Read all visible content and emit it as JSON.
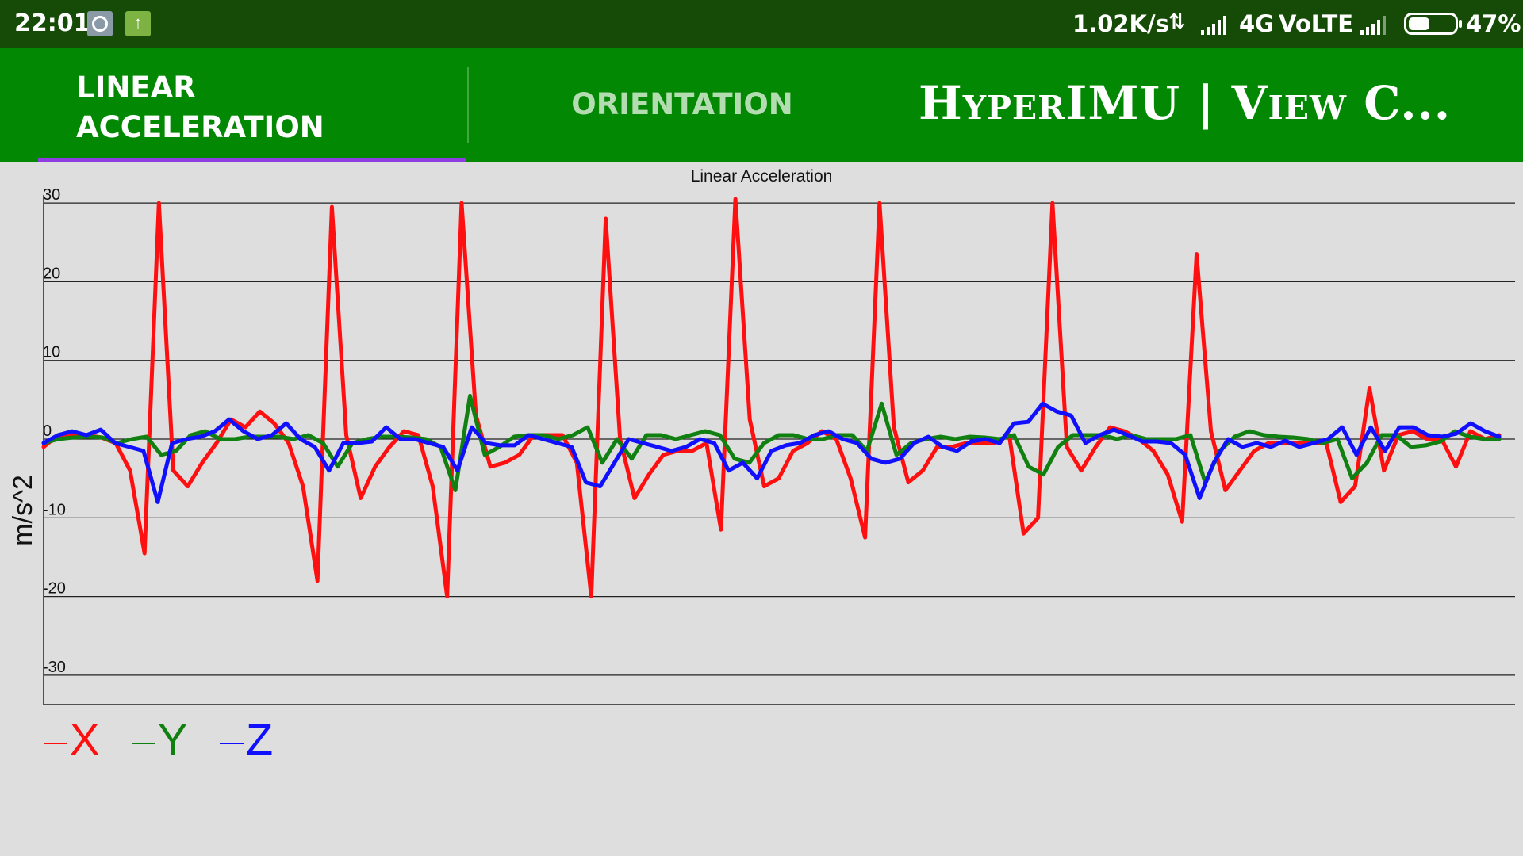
{
  "status_bar": {
    "time": "22:01",
    "icons": [
      "settings-wheel-icon",
      "upload-arrow-icon"
    ],
    "net_speed": "1.02K/s",
    "data_activity_icon": "data-up-down-icon",
    "signal_icon": "cell-signal-icon",
    "network_type": "4G",
    "volte": "VoLTE",
    "battery_percent": "47%",
    "battery_level": 0.47
  },
  "app_bar": {
    "tabs": [
      {
        "label": "LINEAR\nACCELERATION",
        "selected": true
      },
      {
        "label": "ORIENTATION",
        "selected": false
      }
    ],
    "title": "HyperIMU | View C...",
    "colors": {
      "bar": "#038803",
      "indicator": "#8e3de0",
      "status": "#164b07"
    }
  },
  "chart_data": {
    "type": "line",
    "title": "Linear Acceleration",
    "xlabel": "",
    "ylabel": "m/s^2",
    "ylim": [
      -34,
      31
    ],
    "yticks": [
      30,
      20,
      10,
      0,
      -10,
      -20,
      -30
    ],
    "ytick_labels": [
      "30",
      "20",
      "10",
      "0",
      "-10",
      "-20",
      "-30"
    ],
    "grid": true,
    "legend": "bottom-left",
    "series": [
      {
        "name": "X",
        "color": "#ff1010",
        "values": [
          -1,
          0.5,
          0.5,
          0.5,
          0.2,
          -0.5,
          -4,
          -14.5,
          30,
          -4,
          -6,
          -3,
          -0.5,
          2.5,
          1.5,
          3.5,
          2,
          -0.5,
          -6,
          -18,
          29.5,
          0.5,
          -7.5,
          -3.5,
          -1,
          1,
          0.5,
          -6,
          -20,
          30,
          3,
          -3.5,
          -3,
          -2,
          0.5,
          0.5,
          0.5,
          -3,
          -20,
          28,
          0,
          -7.5,
          -4.5,
          -2,
          -1.5,
          -1.5,
          -0.5,
          -11.5,
          30.5,
          2.5,
          -6,
          -5,
          -1.5,
          -0.5,
          1,
          0,
          -5,
          -12.5,
          30,
          1.5,
          -5.5,
          -4,
          -1,
          -1,
          -0.5,
          -0.5,
          -0.5,
          0.5,
          -12,
          -10,
          30,
          -1,
          -4,
          -1,
          1.5,
          1,
          0,
          -1.5,
          -4.5,
          -10.5,
          23.5,
          1,
          -6.5,
          -4,
          -1.5,
          -0.5,
          -0.5,
          -0.5,
          -0.5,
          -0.5,
          -8,
          -6,
          6.5,
          -4,
          0.5,
          1,
          0,
          0,
          -3.5,
          1,
          0,
          0.5
        ]
      },
      {
        "name": "Y",
        "color": "#108010",
        "values": [
          -0.5,
          0,
          0.2,
          0.3,
          0.2,
          -0.5,
          0,
          0.3,
          -2,
          -1.5,
          0.5,
          1,
          0,
          0,
          0.3,
          0.3,
          0.3,
          0,
          0.5,
          -0.5,
          -3.5,
          -0.5,
          0,
          0.3,
          0.3,
          0.2,
          0,
          -1,
          -6.5,
          5.5,
          -2,
          -1,
          0.3,
          0.5,
          0.5,
          0,
          0.5,
          1.5,
          -3,
          0,
          -2.5,
          0.5,
          0.5,
          0,
          0.5,
          1,
          0.5,
          -2.5,
          -3,
          -0.5,
          0.5,
          0.5,
          0,
          0,
          0.5,
          0.5,
          -1.5,
          4.5,
          -2,
          -0.5,
          0,
          0.3,
          0,
          0.3,
          0.2,
          0,
          0.5,
          -3.5,
          -4.5,
          -1,
          0.5,
          0.5,
          0.5,
          0,
          0.5,
          0,
          0,
          0,
          0.5,
          -5.5,
          -1.5,
          0.3,
          1,
          0.5,
          0.3,
          0.2,
          0,
          -0.5,
          0,
          -5,
          -3,
          0.5,
          0.5,
          -1,
          -0.8,
          -0.3,
          1,
          0.3,
          0,
          0
        ]
      },
      {
        "name": "Z",
        "color": "#1010ff",
        "values": [
          -0.5,
          0.5,
          1,
          0.5,
          1.2,
          -0.5,
          -1,
          -1.5,
          -8,
          -0.5,
          0,
          0.3,
          1,
          2.5,
          1,
          0,
          0.5,
          2,
          0,
          -1,
          -4,
          -0.5,
          -0.5,
          -0.3,
          1.5,
          0,
          0,
          -0.5,
          -1,
          -4,
          1.5,
          -0.5,
          -0.8,
          -0.8,
          0.5,
          0,
          -0.5,
          -1,
          -5.5,
          -6,
          -3,
          0,
          -0.5,
          -1,
          -1.5,
          -1,
          0,
          -0.5,
          -4,
          -3,
          -5,
          -1.5,
          -0.8,
          -0.5,
          0.5,
          1,
          0,
          -0.5,
          -2.5,
          -3,
          -2.5,
          -0.5,
          0.3,
          -1,
          -1.5,
          -0.3,
          0,
          -0.5,
          2,
          2.2,
          4.5,
          3.5,
          3,
          -0.5,
          0.5,
          1.2,
          0.5,
          -0.3,
          -0.3,
          -0.5,
          -2,
          -7.5,
          -3,
          0,
          -1,
          -0.5,
          -1,
          -0.2,
          -1,
          -0.5,
          0,
          1.5,
          -2,
          1.5,
          -1.5,
          1.5,
          1.5,
          0.5,
          0.3,
          0.7,
          2,
          1,
          0.3
        ]
      }
    ]
  }
}
